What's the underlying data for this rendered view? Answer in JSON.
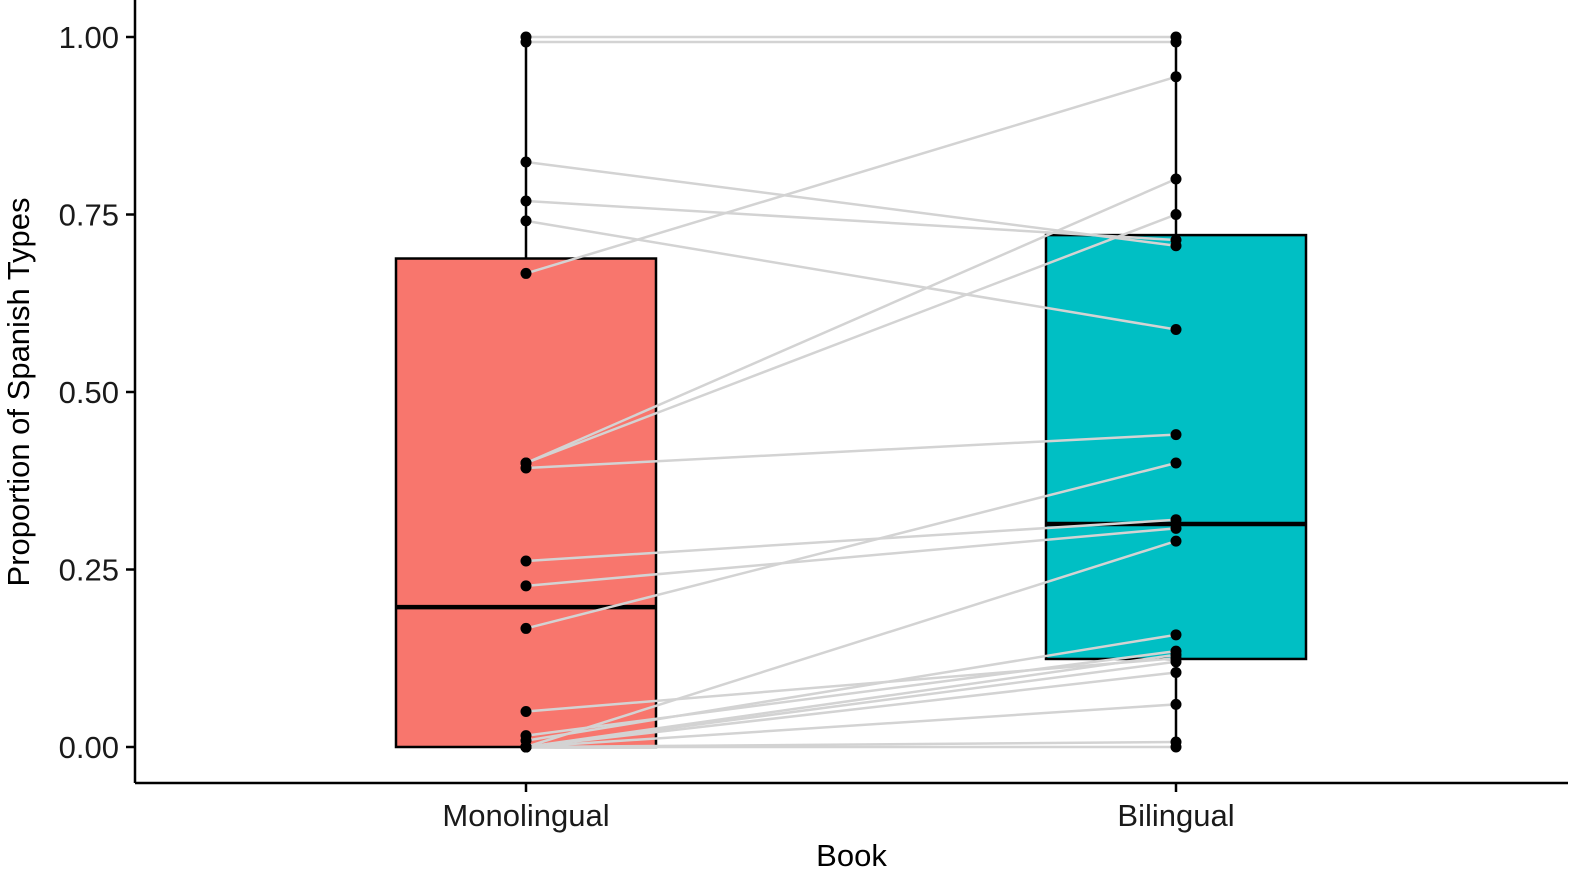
{
  "chart_data": {
    "type": "boxplot",
    "xlabel": "Book",
    "ylabel": "Proportion of Spanish Types",
    "categories": [
      "Monolingual",
      "Bilingual"
    ],
    "ylim": [
      0,
      1
    ],
    "yticks": [
      0,
      0.25,
      0.5,
      0.75,
      1
    ],
    "ytick_labels": [
      "0.00",
      "0.25",
      "0.50",
      "0.75",
      "1.00"
    ],
    "grid": false,
    "legend": "none",
    "boxes": [
      {
        "category": "Monolingual",
        "color": "#F8766D",
        "min": 0,
        "q1": 0,
        "median": 0.197,
        "q3": 0.688,
        "max": 1.0
      },
      {
        "category": "Bilingual",
        "color": "#00BFC4",
        "min": 0,
        "q1": 0.124,
        "median": 0.314,
        "q3": 0.721,
        "max": 1.0
      }
    ],
    "pairs": [
      {
        "monolingual": 1.0,
        "bilingual": 1.0
      },
      {
        "monolingual": 0.993,
        "bilingual": 0.993
      },
      {
        "monolingual": 0.667,
        "bilingual": 0.944
      },
      {
        "monolingual": 0.824,
        "bilingual": 0.706
      },
      {
        "monolingual": 0.769,
        "bilingual": 0.714
      },
      {
        "monolingual": 0.741,
        "bilingual": 0.588
      },
      {
        "monolingual": 0.4,
        "bilingual": 0.8
      },
      {
        "monolingual": 0.4,
        "bilingual": 0.75
      },
      {
        "monolingual": 0.393,
        "bilingual": 0.44
      },
      {
        "monolingual": 0.262,
        "bilingual": 0.32
      },
      {
        "monolingual": 0.227,
        "bilingual": 0.308
      },
      {
        "monolingual": 0.167,
        "bilingual": 0.4
      },
      {
        "monolingual": 0.05,
        "bilingual": 0.125
      },
      {
        "monolingual": 0.016,
        "bilingual": 0.135
      },
      {
        "monolingual": 0.009,
        "bilingual": 0.158
      },
      {
        "monolingual": 0.0,
        "bilingual": 0.29
      },
      {
        "monolingual": 0.0,
        "bilingual": 0.13
      },
      {
        "monolingual": 0.0,
        "bilingual": 0.12
      },
      {
        "monolingual": 0.0,
        "bilingual": 0.105
      },
      {
        "monolingual": 0.0,
        "bilingual": 0.06
      },
      {
        "monolingual": 0.0,
        "bilingual": 0.007
      },
      {
        "monolingual": 0.0,
        "bilingual": 0.0
      }
    ],
    "colors": {
      "pair_line": "#d3d3d3",
      "point": "#000000",
      "outline": "#000000",
      "axis": "#000000"
    }
  }
}
